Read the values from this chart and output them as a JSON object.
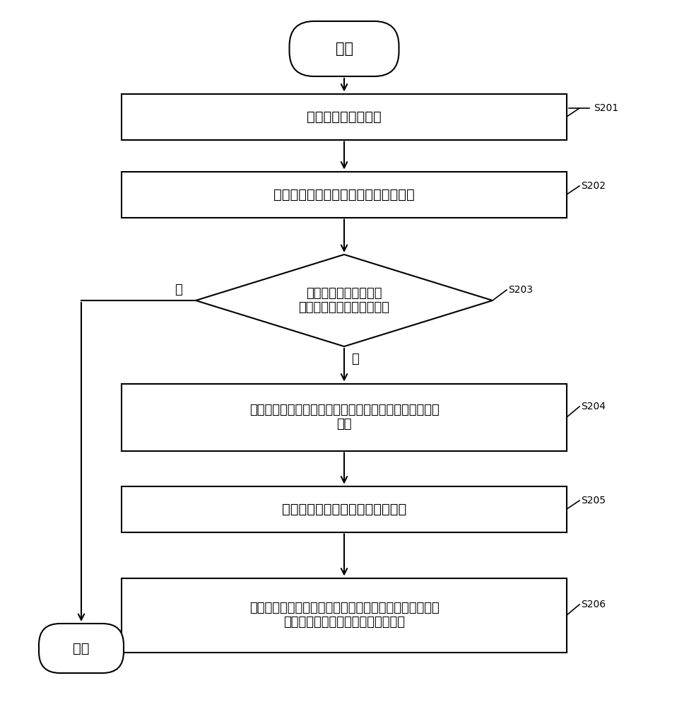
{
  "bg_color": "#ffffff",
  "line_color": "#000000",
  "text_color": "#000000",
  "font_size_main": 13,
  "font_size_label": 11,
  "font_size_step": 11,
  "start_text": "开始",
  "end_text": "结束",
  "steps": [
    {
      "id": "S201",
      "label": "建立访问权限映射表",
      "type": "rect"
    },
    {
      "id": "S202",
      "label": "检测针对用户终端输入的生物特征信息",
      "type": "rect"
    },
    {
      "id": "S203",
      "label": "判断生物特征信息是否\n与预设生物特征信息相匹配",
      "type": "diamond"
    },
    {
      "id": "S204",
      "label": "从访问权限映射表中获取与预设生物特征信息对应的访问\n权限",
      "type": "rect"
    },
    {
      "id": "S205",
      "label": "确定与该访问权限对应的可执行项",
      "type": "rect"
    },
    {
      "id": "S206",
      "label": "当接收到针对可执行项中的目标可执行项的执行指令时，\n响应该执行指令，执行目标可执行项",
      "type": "rect"
    }
  ],
  "yes_label": "是",
  "no_label": "否"
}
